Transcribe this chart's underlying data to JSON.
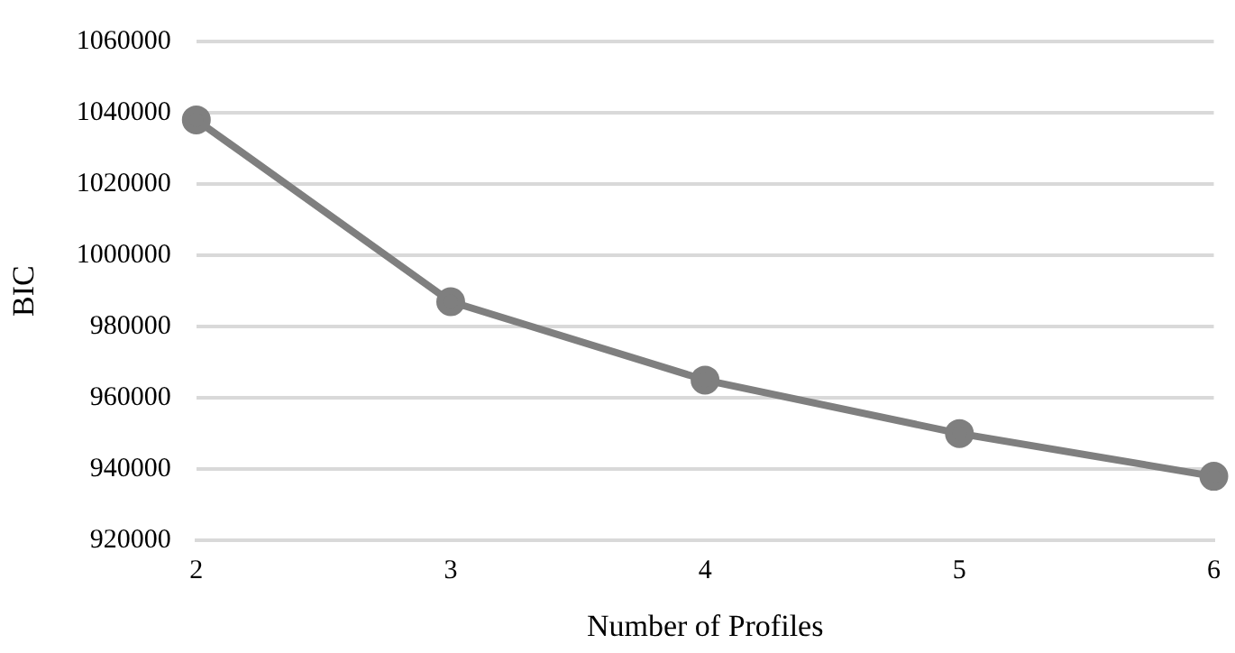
{
  "chart_data": {
    "type": "line",
    "xlabel": "Number of Profiles",
    "ylabel": "BIC",
    "categories": [
      "2",
      "3",
      "4",
      "5",
      "6"
    ],
    "series": [
      {
        "color": "#7f7f7f",
        "values": [
          1038000,
          987000,
          965000,
          950000,
          938000
        ]
      }
    ],
    "ylim": [
      920000,
      1060000
    ],
    "yticks": [
      920000,
      940000,
      960000,
      980000,
      1000000,
      1020000,
      1040000,
      1060000
    ],
    "grid": "y",
    "marker": "circle",
    "line_style": "solid",
    "legend": false
  }
}
